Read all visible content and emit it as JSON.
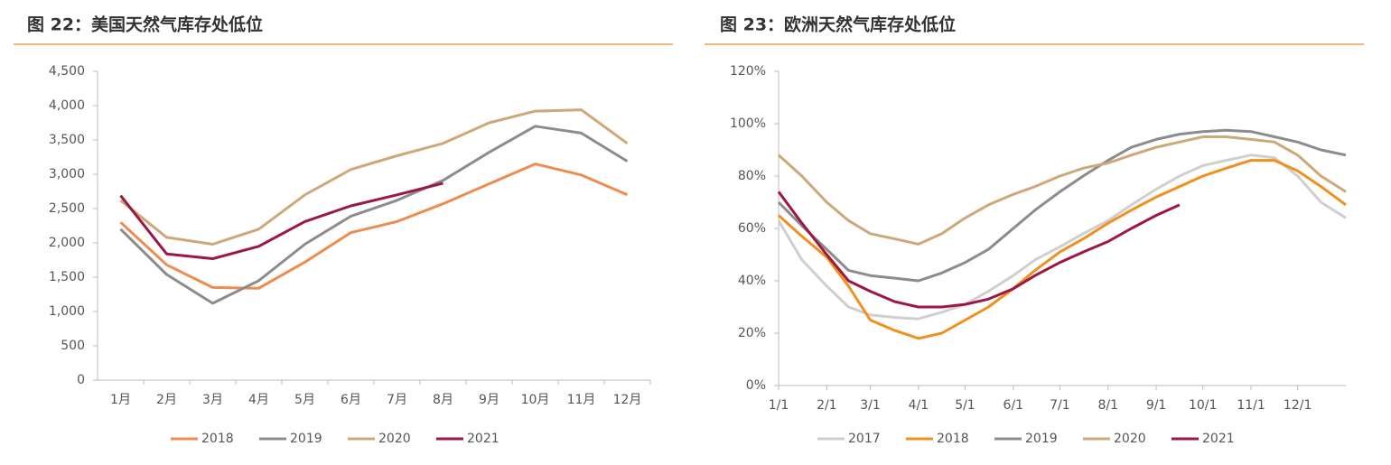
{
  "chart_data": [
    {
      "type": "line",
      "title": "图 22：美国天然气库存处低位",
      "categories": [
        "1月",
        "2月",
        "3月",
        "4月",
        "5月",
        "6月",
        "7月",
        "8月",
        "9月",
        "10月",
        "11月",
        "12月"
      ],
      "ylim": [
        0,
        4500
      ],
      "yticks": [
        0,
        500,
        {
          "value": 1000,
          "label": "1,000"
        },
        {
          "value": 1500,
          "label": "1,500"
        },
        {
          "value": 2000,
          "label": "2,000"
        },
        {
          "value": 2500,
          "label": "2,500"
        },
        {
          "value": 3000,
          "label": "3,000"
        },
        {
          "value": 3500,
          "label": "3,500"
        },
        {
          "value": 4000,
          "label": "4,000"
        },
        {
          "value": 4500,
          "label": "4,500"
        }
      ],
      "legend": "bottom",
      "series": [
        {
          "name": "2018",
          "color": "#ee8c50",
          "values": [
            2300,
            1680,
            1350,
            1340,
            1720,
            2150,
            2310,
            2570,
            2860,
            3150,
            2990,
            2700
          ]
        },
        {
          "name": "2019",
          "color": "#8c8c8c",
          "values": [
            2200,
            1540,
            1120,
            1450,
            1980,
            2390,
            2620,
            2910,
            3320,
            3700,
            3600,
            3190
          ]
        },
        {
          "name": "2020",
          "color": "#cda878",
          "values": [
            2620,
            2080,
            1980,
            2200,
            2700,
            3070,
            3270,
            3450,
            3750,
            3920,
            3940,
            3450
          ]
        },
        {
          "name": "2021",
          "color": "#9e1644",
          "values": [
            2690,
            1840,
            1770,
            1950,
            2310,
            2540,
            2700,
            2870,
            null,
            null,
            null,
            null
          ]
        }
      ]
    },
    {
      "type": "line",
      "title": "图 23：欧洲天然气库存处低位",
      "x": [
        0,
        15,
        31,
        45,
        59,
        75,
        90,
        105,
        120,
        135,
        151,
        165,
        181,
        196,
        212,
        227,
        243,
        258,
        273,
        288,
        304,
        319,
        334,
        349,
        365
      ],
      "xlim": [
        0,
        365
      ],
      "xticks": [
        {
          "value": 0,
          "label": "1/1"
        },
        {
          "value": 31,
          "label": "2/1"
        },
        {
          "value": 59,
          "label": "3/1"
        },
        {
          "value": 90,
          "label": "4/1"
        },
        {
          "value": 120,
          "label": "5/1"
        },
        {
          "value": 151,
          "label": "6/1"
        },
        {
          "value": 181,
          "label": "7/1"
        },
        {
          "value": 212,
          "label": "8/1"
        },
        {
          "value": 243,
          "label": "9/1"
        },
        {
          "value": 273,
          "label": "10/1"
        },
        {
          "value": 304,
          "label": "11/1"
        },
        {
          "value": 334,
          "label": "12/1"
        }
      ],
      "ylim": [
        0,
        120
      ],
      "yticks": [
        {
          "value": 0,
          "label": "0%"
        },
        {
          "value": 20,
          "label": "20%"
        },
        {
          "value": 40,
          "label": "40%"
        },
        {
          "value": 60,
          "label": "60%"
        },
        {
          "value": 80,
          "label": "80%"
        },
        {
          "value": 100,
          "label": "100%"
        },
        {
          "value": 120,
          "label": "120%"
        }
      ],
      "legend": "bottom",
      "series": [
        {
          "name": "2017",
          "color": "#cfcfcf",
          "values": [
            63,
            48,
            38,
            30,
            27,
            26,
            25.5,
            28,
            31,
            36,
            42,
            48,
            53,
            58,
            63,
            69,
            75,
            80,
            84,
            86,
            88,
            87,
            80,
            70,
            64
          ]
        },
        {
          "name": "2018",
          "color": "#f0901e",
          "values": [
            65,
            57,
            49,
            38,
            25,
            21,
            18,
            20,
            25,
            30,
            37,
            44,
            51,
            56,
            62,
            67,
            72,
            76,
            80,
            83,
            86,
            86,
            82,
            76,
            69
          ]
        },
        {
          "name": "2019",
          "color": "#8c8c8c",
          "values": [
            70,
            61,
            52,
            44,
            42,
            41,
            40,
            43,
            47,
            52,
            60,
            67,
            74,
            80,
            86,
            91,
            94,
            96,
            97,
            97.5,
            97,
            95,
            93,
            90,
            88
          ]
        },
        {
          "name": "2020",
          "color": "#cda878",
          "values": [
            88,
            80,
            70,
            63,
            58,
            56,
            54,
            58,
            64,
            69,
            73,
            76,
            80,
            83,
            85,
            88,
            91,
            93,
            95,
            95,
            94,
            93,
            88,
            80,
            74
          ]
        },
        {
          "name": "2021",
          "color": "#9e1644",
          "values": [
            74,
            62,
            50,
            40,
            36,
            32,
            30,
            30,
            31,
            33,
            37,
            42,
            47,
            51,
            55,
            60,
            65,
            69,
            null,
            null,
            null,
            null,
            null,
            null,
            null
          ]
        }
      ]
    }
  ]
}
